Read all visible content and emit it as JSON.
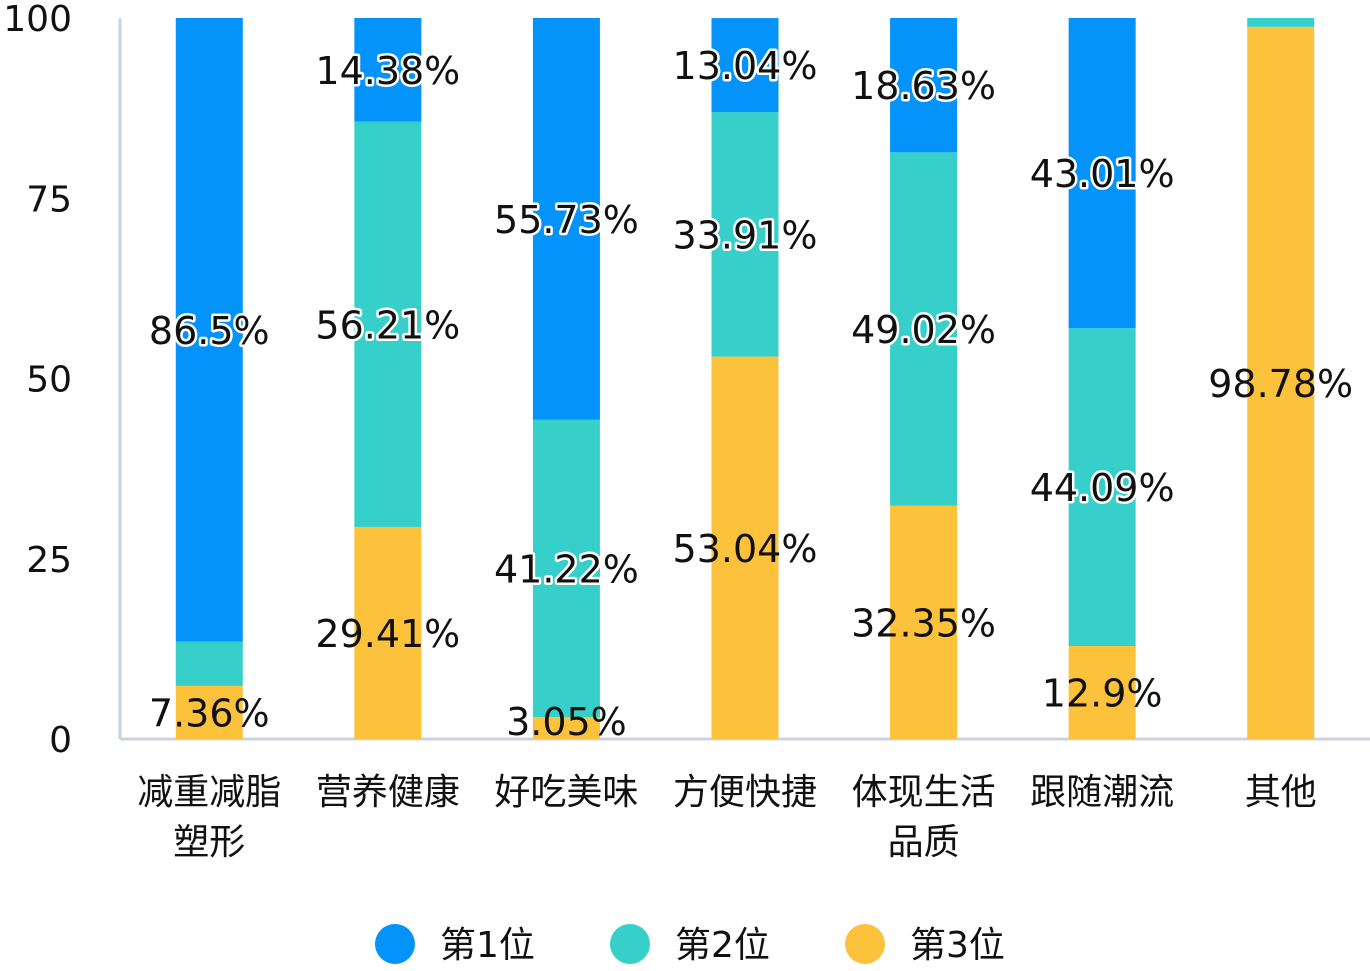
{
  "chart_data": {
    "type": "bar",
    "stacked": true,
    "categories": [
      [
        "减重减脂",
        "塑形"
      ],
      [
        "营养健康"
      ],
      [
        "好吃美味"
      ],
      [
        "方便快捷"
      ],
      [
        "体现生活",
        "品质"
      ],
      [
        "跟随潮流"
      ],
      [
        "其他"
      ]
    ],
    "series": [
      {
        "name": "第1位",
        "color": "#0393fb",
        "values": [
          86.5,
          14.38,
          55.73,
          13.04,
          18.63,
          43.01,
          0
        ],
        "labels": [
          "86.5%",
          "14.38%",
          "55.73%",
          "13.04%",
          "18.63%",
          "43.01%",
          ""
        ]
      },
      {
        "name": "第2位",
        "color": "#36cfc9",
        "values": [
          6.14,
          56.21,
          41.22,
          33.91,
          49.02,
          44.09,
          1.22
        ],
        "labels": [
          "",
          "56.21%",
          "41.22%",
          "33.91%",
          "49.02%",
          "44.09%",
          ""
        ]
      },
      {
        "name": "第3位",
        "color": "#fcc23c",
        "values": [
          7.36,
          29.41,
          3.05,
          53.04,
          32.35,
          12.9,
          98.78
        ],
        "labels": [
          "7.36%",
          "29.41%",
          "3.05%",
          "53.04%",
          "32.35%",
          "12.9%",
          "98.78%"
        ]
      }
    ],
    "ylim": [
      0,
      100
    ],
    "yticks": [
      "0",
      "25",
      "50",
      "75",
      "100"
    ],
    "legend_position": "bottom",
    "grid": false
  }
}
